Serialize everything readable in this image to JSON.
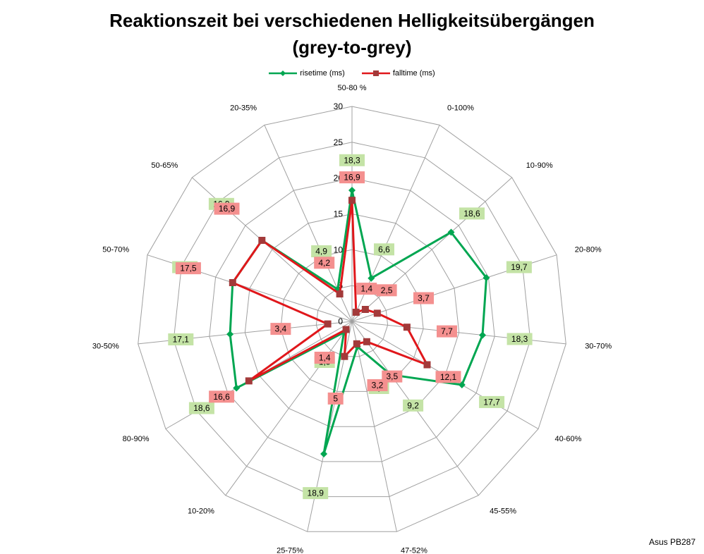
{
  "chart_data": {
    "type": "radar",
    "title_lines": [
      "Reaktionszeit bei verschiedenen Helligkeitsübergängen",
      "(grey-to-grey)"
    ],
    "categories": [
      "50-80 %",
      "0-100%",
      "10-90%",
      "20-80%",
      "30-70%",
      "40-60%",
      "45-55%",
      "47-52%",
      "25-75%",
      "10-20%",
      "80-90%",
      "30-50%",
      "50-70%",
      "50-65%",
      "20-35%"
    ],
    "axis": {
      "min": 0,
      "max": 30,
      "ticks": [
        0,
        5,
        10,
        15,
        20,
        25,
        30
      ]
    },
    "series": [
      {
        "name": "risetime (ms)",
        "color": "#00a651",
        "marker": "diamond",
        "label_color": "#c4e3a6",
        "values": [
          18.3,
          6.6,
          18.6,
          19.7,
          18.3,
          17.7,
          9.2,
          3.6,
          18.9,
          1.9,
          18.6,
          17.1,
          17.5,
          16.9,
          4.9
        ],
        "labels": [
          "18,3",
          "6,6",
          "18,6",
          "19,7",
          "18,3",
          "17,7",
          "9,2",
          "3,6",
          "18,9",
          "1,9",
          "18,6",
          "17,1",
          "17,5",
          "16,9",
          "4,9"
        ]
      },
      {
        "name": "falltime (ms)",
        "color": "#e0171b",
        "marker": "square",
        "label_color": "#f4908f",
        "values": [
          16.9,
          1.4,
          2.5,
          3.7,
          7.7,
          12.1,
          3.5,
          3.2,
          5,
          1.4,
          16.6,
          3.4,
          17.5,
          16.9,
          4.2
        ],
        "labels": [
          "16,9",
          "1,4",
          "2,5",
          "3,7",
          "7,7",
          "12,1",
          "3,5",
          "3,2",
          "5",
          "1,4",
          "16,6",
          "3,4",
          "17,5",
          "16,9",
          "4,2"
        ]
      }
    ],
    "legend_position": "top",
    "footnote": "Asus PB287"
  }
}
